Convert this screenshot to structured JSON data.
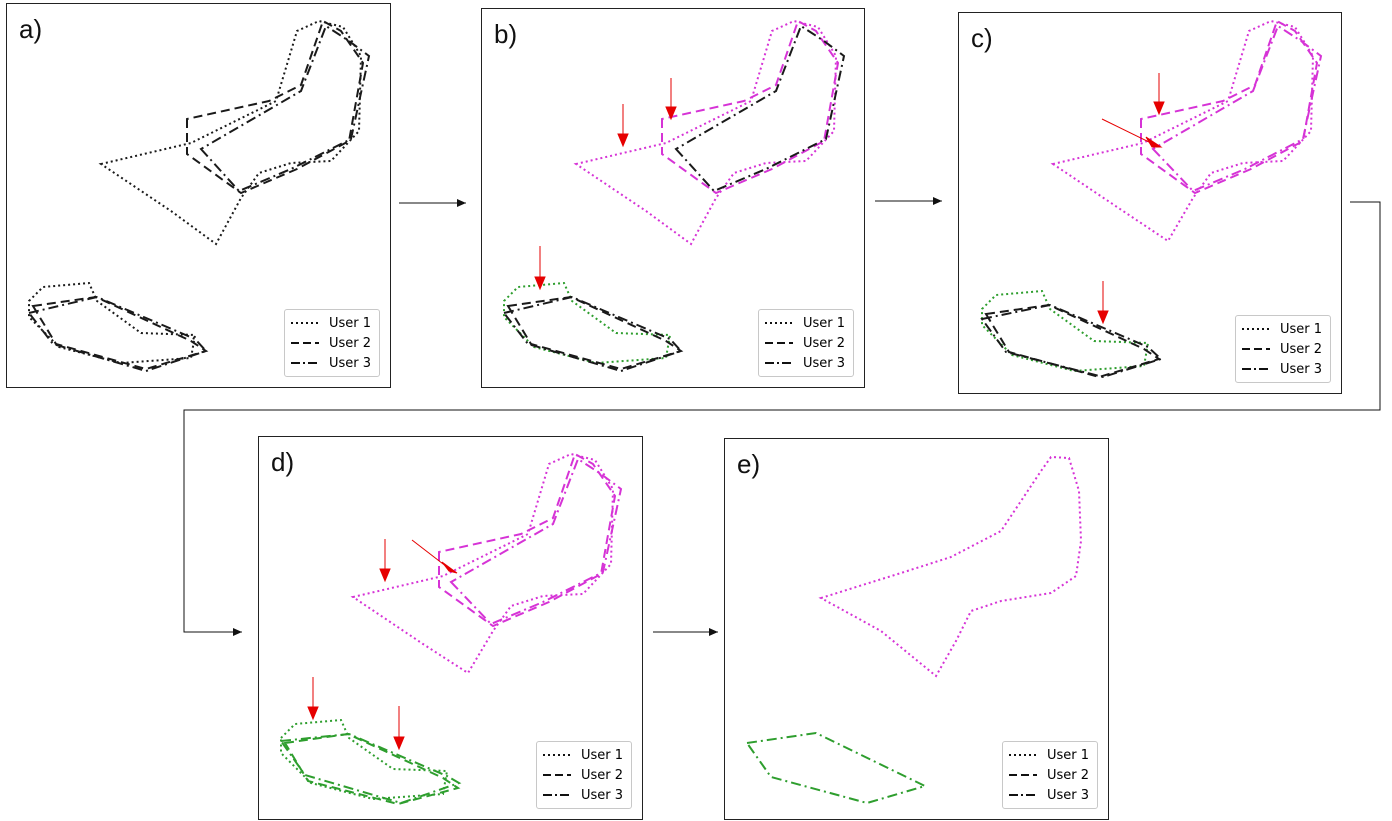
{
  "panels": [
    {
      "id": "a",
      "label": "a)"
    },
    {
      "id": "b",
      "label": "b)"
    },
    {
      "id": "c",
      "label": "c)"
    },
    {
      "id": "d",
      "label": "d)"
    },
    {
      "id": "e",
      "label": "e)"
    }
  ],
  "legend": [
    {
      "label": "User 1",
      "style": "dotted"
    },
    {
      "label": "User 2",
      "style": "dashed"
    },
    {
      "label": "User 3",
      "style": "dashdot"
    }
  ],
  "colors": {
    "neutral": "#1a1a1a",
    "large_region": "#d633d6",
    "small_region": "#2e9e2e",
    "arrow": "#e60000",
    "connector": "#111111"
  }
}
